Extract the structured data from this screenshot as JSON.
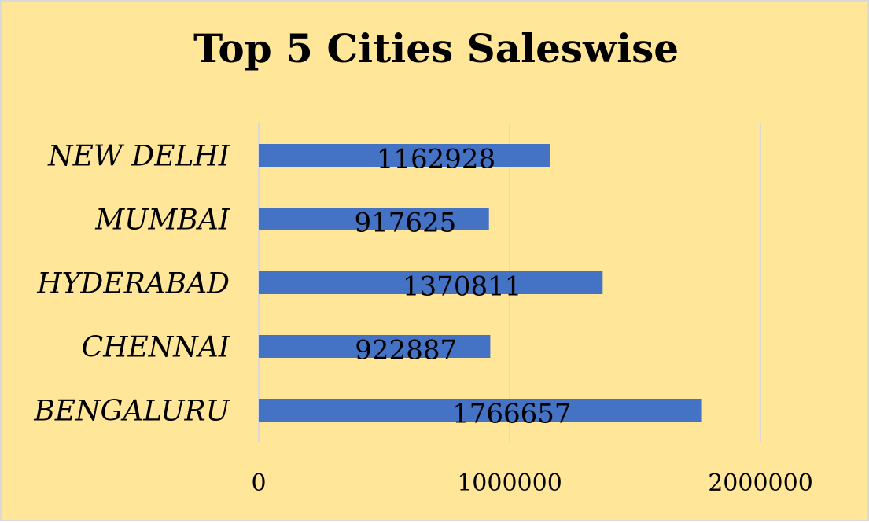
{
  "chart_data": {
    "type": "bar",
    "orientation": "horizontal",
    "title": "Top 5 Cities Saleswise",
    "categories": [
      "NEW DELHI",
      "MUMBAI",
      "HYDERABAD",
      "CHENNAI",
      "BENGALURU"
    ],
    "values": [
      1162928,
      917625,
      1370811,
      922887,
      1766657
    ],
    "value_labels": [
      "1162928",
      "917625",
      "1370811",
      "922887",
      "1766657"
    ],
    "xlim": [
      0,
      2000000
    ],
    "x_ticks": [
      0,
      1000000,
      2000000
    ],
    "x_tick_labels": [
      "0",
      "1000000",
      "2000000"
    ],
    "grid": true,
    "legend": "none",
    "bar_color": "#4472c4",
    "background_color": "#ffe699"
  }
}
